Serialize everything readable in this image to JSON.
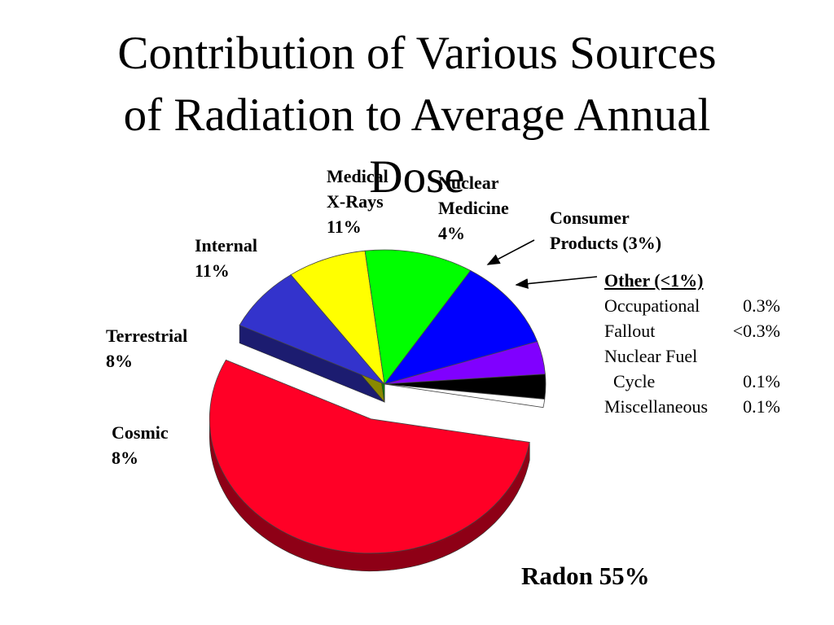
{
  "title": "Contribution of Various Sources\nof Radiation to Average Annual\nDose",
  "chart_data": {
    "type": "pie",
    "title": "Contribution of Various Sources of Radiation to Average Annual Dose",
    "slices": [
      {
        "name": "Radon",
        "value": 55,
        "label": "Radon 55%",
        "color": "#ff0026",
        "side_color": "#8e0016",
        "exploded": true
      },
      {
        "name": "Cosmic",
        "value": 8,
        "label": "Cosmic\n8%",
        "color": "#3333cc",
        "side_color": "#1c1c70"
      },
      {
        "name": "Terrestrial",
        "value": 8,
        "label": "Terrestrial\n8%",
        "color": "#ffff00",
        "side_color": "#8a8a00"
      },
      {
        "name": "Internal",
        "value": 11,
        "label": "Internal\n11%",
        "color": "#00ff00",
        "side_color": "#008800"
      },
      {
        "name": "Medical X-Rays",
        "value": 11,
        "label": "Medical\nX-Rays\n11%",
        "color": "#0000ff",
        "side_color": "#00008a"
      },
      {
        "name": "Nuclear Medicine",
        "value": 4,
        "label": "Nuclear\nMedicine\n4%",
        "color": "#8000ff",
        "side_color": "#44008a"
      },
      {
        "name": "Consumer Products",
        "value": 3,
        "label": "Consumer\nProducts (3%)",
        "color": "#000000",
        "side_color": "#000000"
      },
      {
        "name": "Other",
        "value": 1,
        "label": "Other (<1%)",
        "color": "#ffffff",
        "side_color": "#888888"
      }
    ],
    "other_breakdown": {
      "heading": "Other (<1%)",
      "items": [
        {
          "name": "Occupational",
          "value": "0.3%"
        },
        {
          "name": "Fallout",
          "value": "<0.3%"
        },
        {
          "name": "Nuclear Fuel",
          "value": ""
        },
        {
          "name": "  Cycle",
          "value": "0.1%"
        },
        {
          "name": "Miscellaneous",
          "value": "0.1%"
        }
      ]
    }
  }
}
